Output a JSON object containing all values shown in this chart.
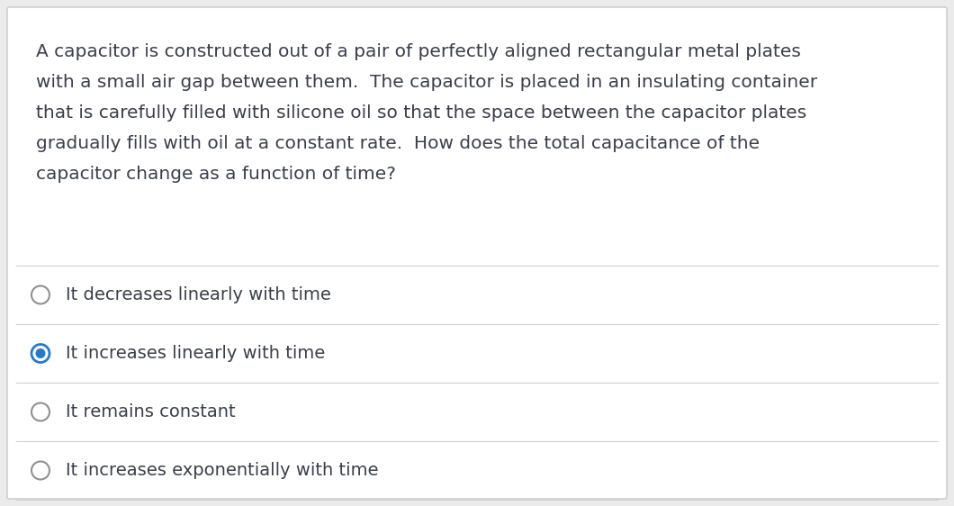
{
  "background_color": "#ebebeb",
  "card_background": "#ffffff",
  "card_border_color": "#c8c8c8",
  "question_text_lines": [
    "A capacitor is constructed out of a pair of perfectly aligned rectangular metal plates",
    "with a small air gap between them.  The capacitor is placed in an insulating container",
    "that is carefully filled with silicone oil so that the space between the capacitor plates",
    "gradually fills with oil at a constant rate.  How does the total capacitance of the",
    "capacitor change as a function of time?"
  ],
  "question_color": "#3a3f4a",
  "question_fontsize": 14.5,
  "options": [
    "It decreases linearly with time",
    "It increases linearly with time",
    "It remains constant",
    "It increases exponentially with time"
  ],
  "selected_index": 1,
  "option_color": "#3a3f4a",
  "option_fontsize": 14.0,
  "radio_unselected_edge": "#909090",
  "radio_selected_outer": "#2979c9",
  "radio_selected_inner": "#2979c9",
  "separator_color": "#d0d0d0",
  "separator_linewidth": 0.8,
  "fig_width": 10.6,
  "fig_height": 5.62,
  "dpi": 100
}
